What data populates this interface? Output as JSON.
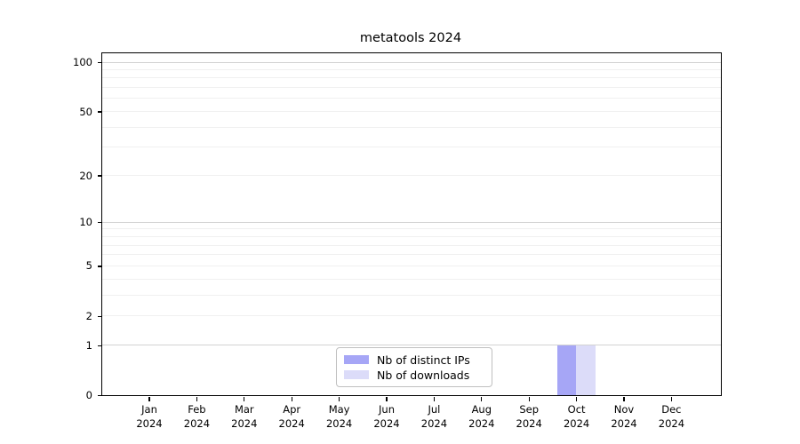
{
  "chart_data": {
    "type": "bar",
    "title": "metatools 2024",
    "categories": [
      "Jan 2024",
      "Feb 2024",
      "Mar 2024",
      "Apr 2024",
      "May 2024",
      "Jun 2024",
      "Jul 2024",
      "Aug 2024",
      "Sep 2024",
      "Oct 2024",
      "Nov 2024",
      "Dec 2024"
    ],
    "series": [
      {
        "name": "Nb of distinct IPs",
        "color": "#a6a6f6",
        "values": [
          0,
          0,
          0,
          0,
          0,
          0,
          0,
          0,
          0,
          1,
          0,
          0
        ]
      },
      {
        "name": "Nb of downloads",
        "color": "#dcdcf9",
        "values": [
          0,
          0,
          0,
          0,
          0,
          0,
          0,
          0,
          0,
          1,
          0,
          0
        ]
      }
    ],
    "yscale": "log1p",
    "ylim": [
      0,
      100
    ],
    "yticks": [
      0,
      1,
      2,
      5,
      10,
      20,
      50,
      100
    ],
    "major_gridlines": [
      1,
      10,
      100
    ],
    "minor_gridlines": [
      2,
      3,
      4,
      5,
      6,
      7,
      8,
      9,
      20,
      30,
      40,
      50,
      60,
      70,
      80,
      90
    ],
    "grid": "horizontal",
    "legend_position": "lower center"
  }
}
